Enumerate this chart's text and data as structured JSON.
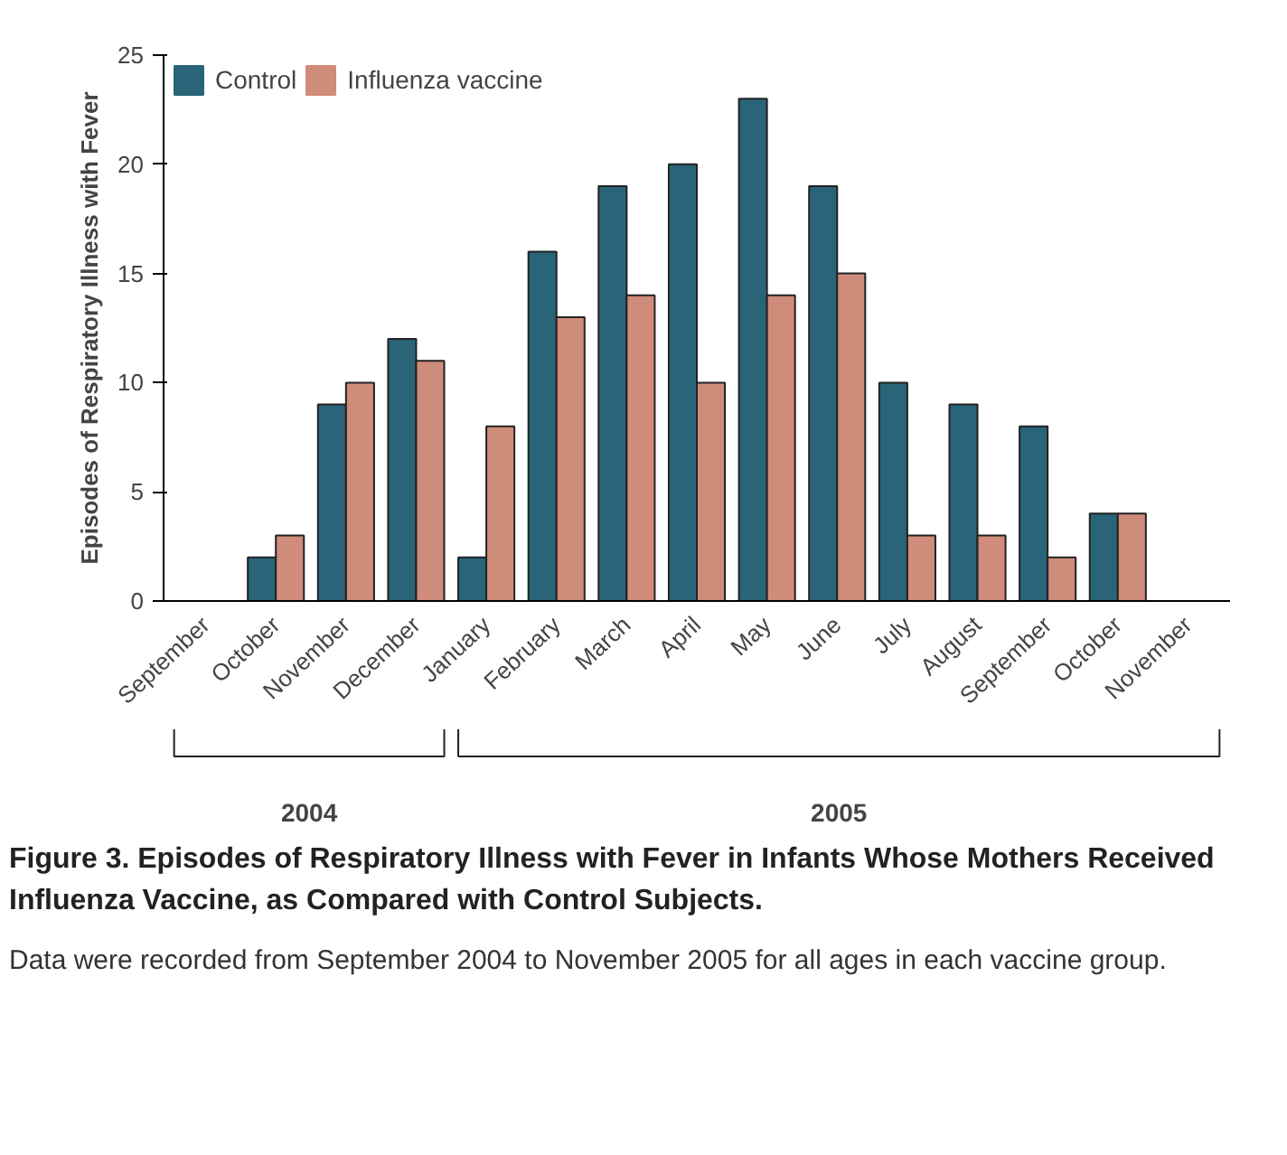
{
  "chart_data": {
    "type": "bar",
    "title": "Figure 3. Episodes of Respiratory Illness with Fever in Infants Whose Mothers Received Influenza Vaccine, as Compared with Control Subjects.",
    "subtitle": "Data were recorded from September 2004 to November 2005 for all ages in each vaccine group.",
    "ylabel": "Episodes of Respiratory Illness with Fever",
    "categories": [
      "September",
      "October",
      "November",
      "December",
      "January",
      "February",
      "March",
      "April",
      "May",
      "June",
      "July",
      "August",
      "September",
      "October",
      "November"
    ],
    "series": [
      {
        "name": "Control",
        "color": "#2a6478",
        "values": [
          0,
          2,
          9,
          12,
          2,
          16,
          19,
          20,
          23,
          19,
          10,
          9,
          8,
          4,
          0
        ]
      },
      {
        "name": "Influenza vaccine",
        "color": "#d08c7a",
        "values": [
          0,
          3,
          10,
          11,
          8,
          13,
          14,
          10,
          14,
          15,
          3,
          3,
          2,
          4,
          0
        ]
      }
    ],
    "annotations": [
      "2004",
      "2005"
    ],
    "ylim": [
      0,
      25
    ],
    "yticks": [
      0,
      5,
      10,
      15,
      20,
      25
    ],
    "grid": false,
    "legend": "top"
  }
}
